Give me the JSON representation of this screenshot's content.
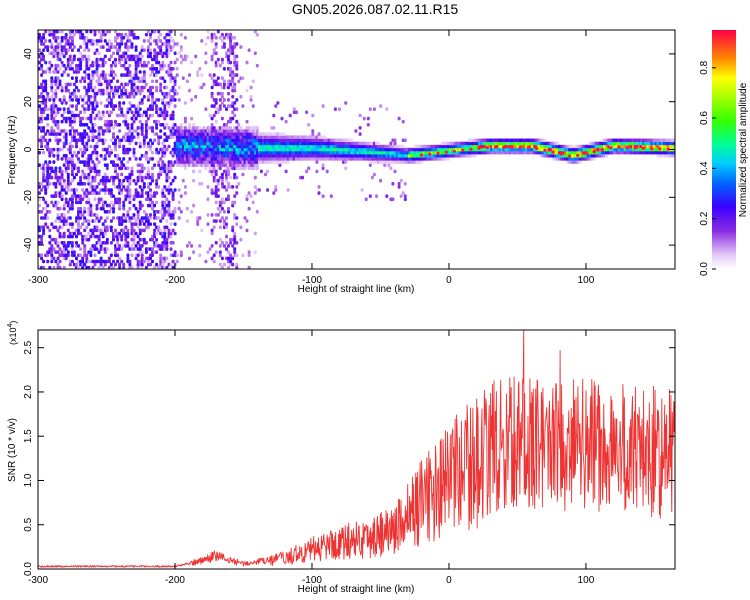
{
  "title": "GN05.2026.087.02.11.R15",
  "chart_data": [
    {
      "type": "heatmap",
      "xlabel": "Height of straight line (km)",
      "ylabel": "Frequency (Hz)",
      "xlim": [
        -300,
        165
      ],
      "ylim": [
        -50,
        50
      ],
      "xticks": [
        -300,
        -200,
        -100,
        0,
        100
      ],
      "yticks": [
        -40,
        -20,
        0,
        20,
        40
      ],
      "ridge": {
        "x": [
          -200,
          -150,
          -100,
          -50,
          -30,
          0,
          30,
          60,
          90,
          120,
          165
        ],
        "y": [
          1.0,
          0.0,
          0.0,
          -2.0,
          -3.0,
          -1.0,
          1.0,
          1.0,
          -3.0,
          1.0,
          0.0
        ]
      },
      "colorbar": {
        "label": "Normalized spectral amplitude",
        "range": [
          0.0,
          0.95
        ],
        "ticks": [
          0.0,
          0.2,
          0.4,
          0.6,
          0.8
        ]
      }
    },
    {
      "type": "line",
      "xlabel": "Height of straight line (km)",
      "ylabel": "SNR (10 * v/v)",
      "scale_label": "(x10",
      "scale_exp": "4",
      "scale_close": ")",
      "xlim": [
        -300,
        165
      ],
      "ylim": [
        0.0,
        2.7
      ],
      "xticks": [
        -300,
        -200,
        -100,
        0,
        100
      ],
      "yticks": [
        "0.0",
        "0.5",
        "1.0",
        "1.5",
        "2.0",
        "2.5"
      ],
      "series": [
        {
          "color": "#ee3333",
          "x": [
            -300,
            -250,
            -200,
            -190,
            -180,
            -170,
            -160,
            -150,
            -120,
            -100,
            -80,
            -60,
            -40,
            -20,
            0,
            20,
            30,
            50,
            80,
            100,
            130,
            160,
            165
          ],
          "y": [
            0.03,
            0.03,
            0.03,
            0.06,
            0.1,
            0.15,
            0.1,
            0.06,
            0.12,
            0.22,
            0.3,
            0.35,
            0.45,
            0.75,
            1.0,
            1.2,
            1.35,
            1.45,
            1.4,
            1.4,
            1.35,
            1.3,
            1.3
          ]
        }
      ]
    }
  ]
}
